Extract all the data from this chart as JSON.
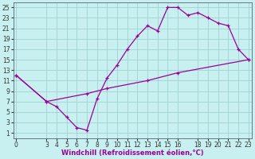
{
  "xlabel": "Windchill (Refroidissement éolien,°C)",
  "bg_color": "#c8f0f0",
  "line_color": "#990099",
  "grid_color": "#99cccc",
  "curve1_x": [
    0,
    3,
    4,
    5,
    6,
    7,
    8,
    9,
    10,
    11,
    12,
    13,
    14,
    15,
    16,
    17,
    18,
    19,
    20,
    21,
    22,
    23
  ],
  "curve1_y": [
    12,
    7,
    6,
    4,
    2,
    1.5,
    7.5,
    11.5,
    14,
    17,
    19.5,
    21.5,
    20.5,
    25,
    25,
    23.5,
    24,
    23,
    22,
    21.5,
    17,
    15
  ],
  "curve2_x": [
    0,
    3,
    7,
    9,
    13,
    16,
    23
  ],
  "curve2_y": [
    12,
    7,
    8.5,
    9.5,
    11,
    12.5,
    15
  ],
  "xlim": [
    -0.3,
    23.3
  ],
  "ylim": [
    0,
    26
  ],
  "xticks": [
    0,
    3,
    4,
    5,
    6,
    7,
    8,
    9,
    10,
    11,
    12,
    13,
    14,
    15,
    16,
    18,
    19,
    20,
    21,
    22,
    23
  ],
  "yticks": [
    1,
    3,
    5,
    7,
    9,
    11,
    13,
    15,
    17,
    19,
    21,
    23,
    25
  ],
  "tick_fontsize": 5.5,
  "xlabel_fontsize": 6,
  "border_color": "#7799aa",
  "spine_color": "#556677"
}
